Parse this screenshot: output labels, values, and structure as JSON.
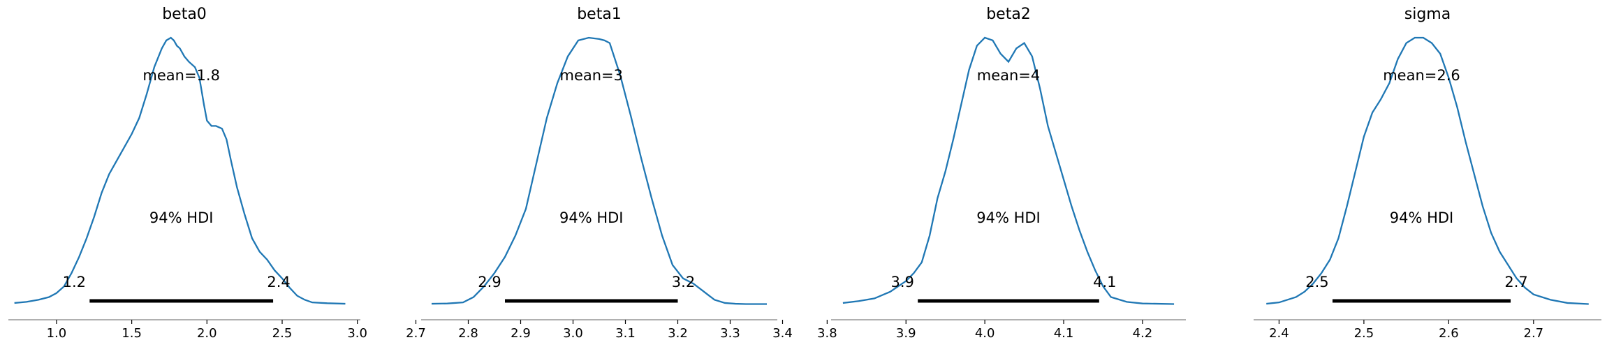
{
  "chart_data": [
    {
      "type": "density",
      "title": "beta0",
      "mean_label": "mean=1.8",
      "hdi_label": "94% HDI",
      "hdi": [
        1.22,
        2.44
      ],
      "hdi_labels": [
        "1.2",
        "2.4"
      ],
      "xlim": [
        0.68,
        3.02
      ],
      "xticks": [
        1.0,
        1.5,
        2.0,
        2.5,
        3.0
      ],
      "xtick_labels": [
        "1.0",
        "1.5",
        "2.0",
        "2.5",
        "3.0"
      ],
      "color": "#1f77b4",
      "density": {
        "x": [
          0.72,
          0.8,
          0.88,
          0.95,
          1.0,
          1.05,
          1.1,
          1.15,
          1.2,
          1.25,
          1.3,
          1.35,
          1.4,
          1.45,
          1.5,
          1.55,
          1.6,
          1.65,
          1.7,
          1.73,
          1.76,
          1.78,
          1.8,
          1.82,
          1.85,
          1.88,
          1.92,
          1.95,
          1.98,
          2.0,
          2.03,
          2.06,
          2.1,
          2.13,
          2.16,
          2.2,
          2.25,
          2.3,
          2.35,
          2.4,
          2.45,
          2.5,
          2.55,
          2.6,
          2.65,
          2.7,
          2.8,
          2.92
        ],
        "y": [
          0.008,
          0.012,
          0.02,
          0.03,
          0.045,
          0.07,
          0.12,
          0.18,
          0.25,
          0.33,
          0.42,
          0.49,
          0.54,
          0.59,
          0.64,
          0.7,
          0.79,
          0.89,
          0.96,
          0.99,
          1.0,
          0.99,
          0.97,
          0.96,
          0.93,
          0.91,
          0.89,
          0.85,
          0.75,
          0.69,
          0.67,
          0.67,
          0.66,
          0.62,
          0.54,
          0.44,
          0.34,
          0.25,
          0.2,
          0.17,
          0.13,
          0.1,
          0.065,
          0.035,
          0.02,
          0.01,
          0.007,
          0.005
        ]
      }
    },
    {
      "type": "density",
      "title": "beta1",
      "mean_label": "mean=3",
      "hdi_label": "94% HDI",
      "hdi": [
        2.87,
        3.2
      ],
      "hdi_labels": [
        "2.9",
        "3.2"
      ],
      "xlim": [
        2.71,
        3.39
      ],
      "xticks": [
        2.7,
        2.8,
        2.9,
        3.0,
        3.1,
        3.2,
        3.3,
        3.4
      ],
      "xtick_labels": [
        "2.7",
        "2.8",
        "2.9",
        "3.0",
        "3.1",
        "3.2",
        "3.3",
        "3.4"
      ],
      "color": "#1f77b4",
      "density": {
        "x": [
          2.73,
          2.76,
          2.79,
          2.81,
          2.83,
          2.85,
          2.87,
          2.89,
          2.91,
          2.93,
          2.95,
          2.97,
          2.99,
          3.01,
          3.03,
          3.05,
          3.06,
          3.07,
          3.09,
          3.11,
          3.13,
          3.15,
          3.17,
          3.19,
          3.21,
          3.23,
          3.25,
          3.27,
          3.29,
          3.31,
          3.33,
          3.35,
          3.37
        ],
        "y": [
          0.005,
          0.006,
          0.01,
          0.03,
          0.07,
          0.12,
          0.18,
          0.26,
          0.36,
          0.53,
          0.7,
          0.83,
          0.93,
          0.99,
          1.0,
          0.995,
          0.99,
          0.98,
          0.86,
          0.71,
          0.55,
          0.4,
          0.26,
          0.15,
          0.1,
          0.08,
          0.05,
          0.02,
          0.008,
          0.005,
          0.004,
          0.004,
          0.004
        ]
      }
    },
    {
      "type": "density",
      "title": "beta2",
      "mean_label": "mean=4",
      "hdi_label": "94% HDI",
      "hdi": [
        3.915,
        4.145
      ],
      "hdi_labels": [
        "3.9",
        "4.1"
      ],
      "xlim": [
        3.805,
        4.255
      ],
      "xticks": [
        3.8,
        3.9,
        4.0,
        4.1,
        4.2
      ],
      "xtick_labels": [
        "3.8",
        "3.9",
        "4.0",
        "4.1",
        "4.2"
      ],
      "color": "#1f77b4",
      "density": {
        "x": [
          3.82,
          3.84,
          3.86,
          3.88,
          3.9,
          3.91,
          3.92,
          3.93,
          3.94,
          3.95,
          3.96,
          3.97,
          3.98,
          3.99,
          4.0,
          4.01,
          4.02,
          4.03,
          4.04,
          4.05,
          4.06,
          4.07,
          4.08,
          4.09,
          4.1,
          4.11,
          4.12,
          4.13,
          4.14,
          4.15,
          4.16,
          4.18,
          4.2,
          4.24
        ],
        "y": [
          0.008,
          0.015,
          0.025,
          0.05,
          0.09,
          0.12,
          0.16,
          0.26,
          0.4,
          0.5,
          0.62,
          0.75,
          0.88,
          0.97,
          1.0,
          0.99,
          0.94,
          0.91,
          0.96,
          0.98,
          0.93,
          0.81,
          0.67,
          0.57,
          0.47,
          0.37,
          0.28,
          0.2,
          0.13,
          0.07,
          0.03,
          0.012,
          0.006,
          0.004
        ]
      }
    },
    {
      "type": "density",
      "title": "sigma",
      "mean_label": "mean=2.6",
      "hdi_label": "94% HDI",
      "hdi": [
        2.463,
        2.673
      ],
      "hdi_labels": [
        "2.5",
        "2.7"
      ],
      "xlim": [
        2.37,
        2.78
      ],
      "xticks": [
        2.4,
        2.5,
        2.6,
        2.7
      ],
      "xtick_labels": [
        "2.4",
        "2.5",
        "2.6",
        "2.7"
      ],
      "color": "#1f77b4",
      "density": {
        "x": [
          2.385,
          2.4,
          2.41,
          2.42,
          2.43,
          2.44,
          2.45,
          2.46,
          2.47,
          2.48,
          2.49,
          2.5,
          2.51,
          2.52,
          2.53,
          2.54,
          2.55,
          2.56,
          2.57,
          2.58,
          2.59,
          2.6,
          2.61,
          2.62,
          2.63,
          2.64,
          2.65,
          2.66,
          2.67,
          2.68,
          2.69,
          2.7,
          2.72,
          2.74,
          2.765
        ],
        "y": [
          0.005,
          0.01,
          0.02,
          0.03,
          0.05,
          0.08,
          0.12,
          0.17,
          0.25,
          0.37,
          0.5,
          0.63,
          0.72,
          0.77,
          0.83,
          0.92,
          0.98,
          1.0,
          1.0,
          0.98,
          0.94,
          0.85,
          0.74,
          0.61,
          0.49,
          0.37,
          0.27,
          0.2,
          0.15,
          0.1,
          0.065,
          0.04,
          0.02,
          0.008,
          0.004
        ]
      }
    }
  ]
}
